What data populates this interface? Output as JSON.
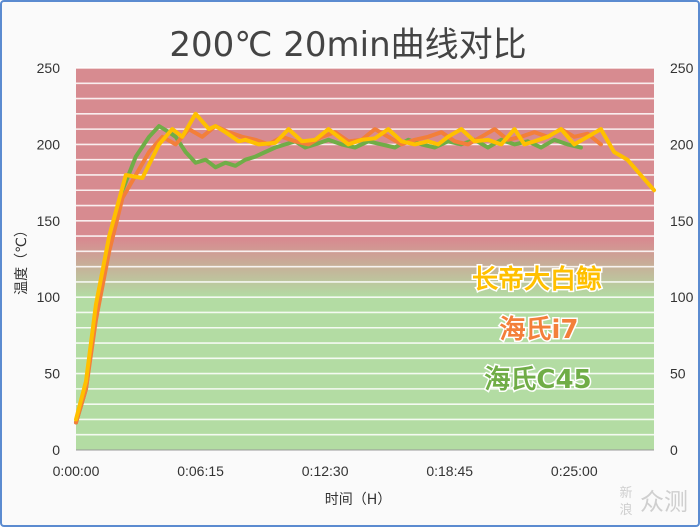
{
  "chart_data": {
    "type": "line",
    "title": "200℃ 20min曲线对比",
    "xlabel": "时间（H）",
    "ylabel": "温度（℃）",
    "xlim": [
      0,
      1740
    ],
    "ylim": [
      0,
      250
    ],
    "x_ticks": [
      "0:00:00",
      "0:06:15",
      "0:12:30",
      "0:18:45",
      "0:25:00"
    ],
    "y_ticks": [
      0,
      50,
      100,
      150,
      200,
      250
    ],
    "grid": true,
    "legend_position": "right",
    "background": {
      "top_color": "#d78b90",
      "bottom_color": "#b3dca3"
    },
    "series": [
      {
        "name": "长帝大白鲸",
        "color": "#ffc000",
        "x": [
          0,
          30,
          60,
          100,
          150,
          200,
          250,
          290,
          320,
          360,
          400,
          420,
          450,
          490,
          510,
          550,
          600,
          640,
          680,
          720,
          760,
          790,
          820,
          860,
          900,
          940,
          980,
          1020,
          1060,
          1090,
          1120,
          1160,
          1200,
          1240,
          1280,
          1320,
          1350,
          1380,
          1420,
          1460,
          1500,
          1540,
          1580,
          1620,
          1660,
          1700,
          1740
        ],
        "y": [
          20,
          45,
          95,
          140,
          180,
          178,
          200,
          210,
          205,
          220,
          210,
          212,
          208,
          202,
          203,
          200,
          201,
          210,
          202,
          203,
          210,
          205,
          200,
          203,
          204,
          210,
          202,
          200,
          202,
          200,
          205,
          210,
          202,
          203,
          200,
          210,
          200,
          202,
          205,
          210,
          200,
          205,
          210,
          195,
          190,
          180,
          170
        ]
      },
      {
        "name": "海氏i7",
        "color": "#f37f3a",
        "x": [
          0,
          30,
          60,
          100,
          140,
          180,
          220,
          260,
          300,
          340,
          380,
          420,
          460,
          500,
          540,
          580,
          620,
          660,
          700,
          740,
          780,
          820,
          860,
          900,
          940,
          980,
          1020,
          1060,
          1100,
          1140,
          1180,
          1220,
          1260,
          1300,
          1340,
          1380,
          1420,
          1460,
          1500,
          1540,
          1580
        ],
        "y": [
          18,
          40,
          85,
          130,
          165,
          180,
          195,
          205,
          200,
          210,
          205,
          212,
          208,
          205,
          203,
          200,
          205,
          202,
          200,
          205,
          208,
          202,
          203,
          210,
          205,
          200,
          203,
          205,
          208,
          202,
          200,
          205,
          210,
          203,
          205,
          208,
          205,
          210,
          205,
          207,
          200
        ]
      },
      {
        "name": "海氏C45",
        "color": "#70ad47",
        "x": [
          0,
          30,
          60,
          100,
          140,
          180,
          220,
          250,
          280,
          300,
          330,
          360,
          390,
          420,
          450,
          480,
          510,
          540,
          570,
          600,
          630,
          660,
          690,
          720,
          760,
          800,
          840,
          880,
          920,
          960,
          1000,
          1040,
          1080,
          1120,
          1160,
          1200,
          1240,
          1280,
          1320,
          1360,
          1400,
          1440,
          1480,
          1520
        ],
        "y": [
          18,
          40,
          90,
          135,
          170,
          192,
          205,
          212,
          208,
          205,
          195,
          188,
          190,
          185,
          188,
          186,
          190,
          192,
          195,
          198,
          200,
          202,
          198,
          200,
          203,
          200,
          198,
          202,
          200,
          198,
          203,
          200,
          198,
          202,
          200,
          203,
          198,
          203,
          200,
          202,
          198,
          203,
          200,
          198
        ]
      }
    ],
    "watermark": {
      "line1": "新",
      "line2": "浪",
      "text": "众测"
    }
  }
}
